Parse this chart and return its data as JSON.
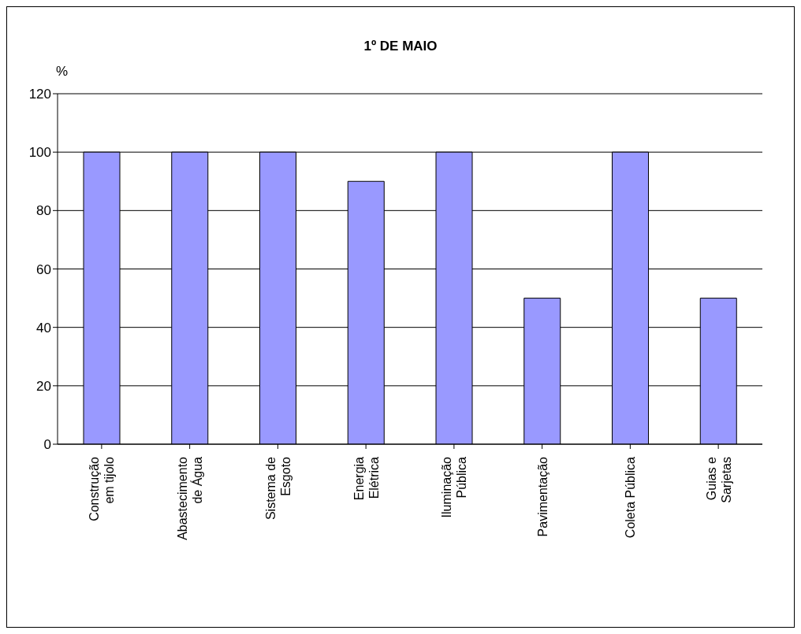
{
  "chart_data": {
    "type": "bar",
    "title": "1º DE MAIO",
    "ylabel": "%",
    "categories": [
      "Construção\nem tijolo",
      "Abastecimento\nde Água",
      "Sistema de\nEsgoto",
      "Energia\nElétrica",
      "Iluminação\nPública",
      "Pavimentação",
      "Coleta Pública",
      "Guias e\nSarjetas"
    ],
    "values": [
      100,
      100,
      100,
      90,
      100,
      50,
      100,
      50
    ],
    "color": "#9999ff",
    "ylim": [
      0,
      120
    ],
    "yticks": [
      0,
      20,
      40,
      60,
      80,
      100,
      120
    ],
    "grid": "y"
  }
}
